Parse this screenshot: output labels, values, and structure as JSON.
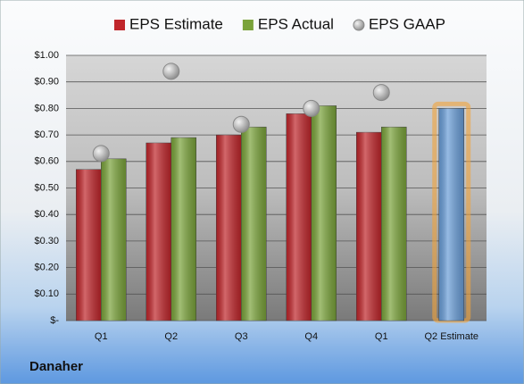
{
  "chart_data": {
    "type": "bar",
    "title": "Danaher",
    "categories": [
      "Q1",
      "Q2",
      "Q3",
      "Q4",
      "Q1",
      "Q2 Estimate"
    ],
    "series": [
      {
        "name": "EPS Estimate",
        "color": "#c0262b",
        "values": [
          0.57,
          0.67,
          0.7,
          0.78,
          0.71,
          null
        ]
      },
      {
        "name": "EPS Actual",
        "color": "#7aa33a",
        "values": [
          0.61,
          0.69,
          0.73,
          0.81,
          0.73,
          null
        ]
      },
      {
        "name": "EPS GAAP",
        "color": "#a8a8a8",
        "values": [
          0.63,
          0.94,
          0.74,
          0.8,
          0.86,
          null
        ],
        "marker": "circle"
      },
      {
        "color": "#6a9ed8",
        "values": [
          null,
          null,
          null,
          null,
          null,
          0.8
        ]
      }
    ],
    "ylim": [
      0,
      1
    ],
    "yticks": [
      {
        "value": 0,
        "label": "$-"
      },
      {
        "value": 0.1,
        "label": "$0.10"
      },
      {
        "value": 0.2,
        "label": "$0.20"
      },
      {
        "value": 0.3,
        "label": "$0.30"
      },
      {
        "value": 0.4,
        "label": "$0.40"
      },
      {
        "value": 0.5,
        "label": "$0.50"
      },
      {
        "value": 0.6,
        "label": "$0.60"
      },
      {
        "value": 0.7,
        "label": "$0.70"
      },
      {
        "value": 0.8,
        "label": "$0.80"
      },
      {
        "value": 0.9,
        "label": "$0.90"
      },
      {
        "value": 1,
        "label": "$1.00"
      }
    ],
    "grid": true,
    "legend": "top"
  }
}
